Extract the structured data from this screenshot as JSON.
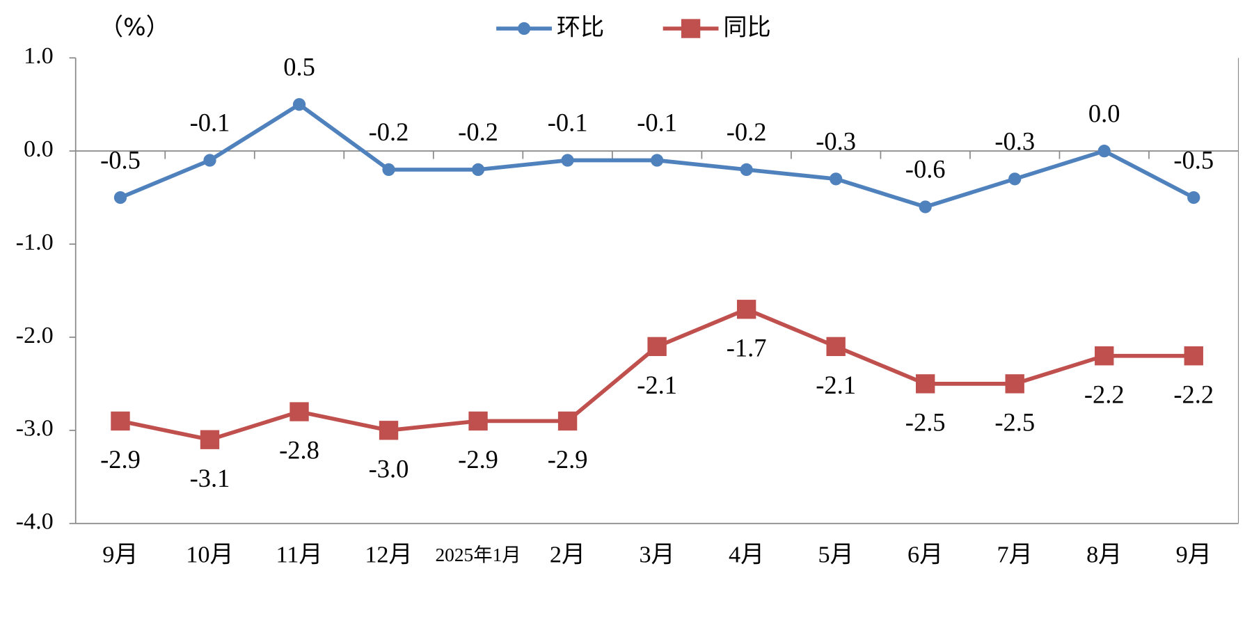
{
  "chart_data": {
    "type": "line",
    "y_label": "（%）",
    "categories": [
      "9月",
      "10月",
      "11月",
      "12月",
      "2025年1月",
      "2月",
      "3月",
      "4月",
      "5月",
      "6月",
      "7月",
      "8月",
      "9月"
    ],
    "series": [
      {
        "name": "环比",
        "color": "#4f81bd",
        "marker": "circle",
        "values": [
          -0.5,
          -0.1,
          0.5,
          -0.2,
          -0.2,
          -0.1,
          -0.1,
          -0.2,
          -0.3,
          -0.6,
          -0.3,
          0,
          -0.5
        ],
        "value_labels": [
          "-0.5",
          "-0.1",
          "0.5",
          "-0.2",
          "-0.2",
          "-0.1",
          "-0.1",
          "-0.2",
          "-0.3",
          "-0.6",
          "-0.3",
          "0.0",
          "-0.5"
        ]
      },
      {
        "name": "同比",
        "color": "#c0504d",
        "marker": "square",
        "values": [
          -2.9,
          -3.1,
          -2.8,
          -3.0,
          -2.9,
          -2.9,
          -2.1,
          -1.7,
          -2.1,
          -2.5,
          -2.5,
          -2.2,
          -2.2
        ],
        "value_labels": [
          "-2.9",
          "-3.1",
          "-2.8",
          "-3.0",
          "-2.9",
          "-2.9",
          "-2.1",
          "-1.7",
          "-2.1",
          "-2.5",
          "-2.5",
          "-2.2",
          "-2.2"
        ]
      }
    ],
    "ylim": [
      -4,
      1
    ],
    "yticks": [
      {
        "value": 1,
        "label": "1.0"
      },
      {
        "value": 0,
        "label": "0.0"
      },
      {
        "value": -1,
        "label": "-1.0"
      },
      {
        "value": -2,
        "label": "-2.0"
      },
      {
        "value": -3,
        "label": "-3.0"
      },
      {
        "value": -4,
        "label": "-4.0"
      }
    ],
    "legend": "top"
  }
}
